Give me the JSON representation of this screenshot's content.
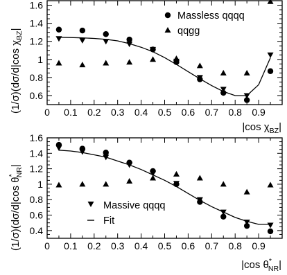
{
  "chart_data": [
    {
      "type": "scatter",
      "title": "",
      "xlabel": "|cos χ",
      "xlabel_sub": "BZ",
      "ylabel": "(1/σ)(dσ/d|cos χ",
      "ylabel_sub": "BZ",
      "xlim": [
        0,
        1
      ],
      "ylim": [
        0.5,
        1.65
      ],
      "x_ticks": [
        "0",
        "0.1",
        "0.2",
        "0.3",
        "0.4",
        "0.5",
        "0.6",
        "0.7",
        "0.8",
        "0.9"
      ],
      "y_ticks": [
        "0.6",
        "0.8",
        "1",
        "1.2",
        "1.4",
        "1.6"
      ],
      "x_tick_values": [
        0,
        0.1,
        0.2,
        0.3,
        0.4,
        0.5,
        0.6,
        0.7,
        0.8,
        0.9
      ],
      "y_tick_values": [
        0.6,
        0.8,
        1.0,
        1.2,
        1.4,
        1.6
      ],
      "grid": false,
      "legend": "top-right",
      "series": [
        {
          "name": "Massless qqqq",
          "marker": "circle",
          "x": [
            0.05,
            0.15,
            0.25,
            0.35,
            0.45,
            0.55,
            0.65,
            0.75,
            0.85,
            0.95
          ],
          "y": [
            1.33,
            1.32,
            1.28,
            1.22,
            1.11,
            0.97,
            0.78,
            0.63,
            0.55,
            0.87
          ]
        },
        {
          "name": "qqgg",
          "marker": "triangle-up",
          "x": [
            0.05,
            0.15,
            0.25,
            0.35,
            0.45,
            0.55,
            0.65,
            0.75,
            0.85,
            0.95
          ],
          "y": [
            0.96,
            0.94,
            0.96,
            0.97,
            1.0,
            1.01,
            0.93,
            0.85,
            0.85,
            1.64
          ]
        },
        {
          "marker": "triangle-down",
          "x": [
            0.05,
            0.15,
            0.25,
            0.35,
            0.45,
            0.55,
            0.65,
            0.75,
            0.85,
            0.95
          ],
          "y": [
            1.23,
            1.21,
            1.2,
            1.17,
            1.11,
            0.98,
            0.8,
            0.67,
            0.6,
            1.05
          ]
        },
        {
          "marker": "line",
          "x": [
            0.05,
            0.1,
            0.15,
            0.2,
            0.25,
            0.3,
            0.35,
            0.4,
            0.45,
            0.5,
            0.55,
            0.6,
            0.65,
            0.7,
            0.75,
            0.8,
            0.85,
            0.9,
            0.95
          ],
          "y": [
            1.245,
            1.242,
            1.238,
            1.232,
            1.222,
            1.205,
            1.175,
            1.135,
            1.085,
            1.02,
            0.945,
            0.865,
            0.785,
            0.71,
            0.645,
            0.6,
            0.6,
            0.72,
            1.02
          ]
        }
      ]
    },
    {
      "type": "scatter",
      "title": "",
      "xlabel": "|cos θ",
      "xlabel_sup": "*",
      "xlabel_sub": "NR",
      "ylabel": "(1/σ)(dσ/d|cos θ",
      "ylabel_sup": "*",
      "ylabel_sub": "NR",
      "xlim": [
        0,
        1
      ],
      "ylim": [
        0.3,
        1.6
      ],
      "x_ticks": [
        "0",
        "0.1",
        "0.2",
        "0.3",
        "0.4",
        "0.5",
        "0.6",
        "0.7",
        "0.8",
        "0.9"
      ],
      "y_ticks": [
        "0.4",
        "0.6",
        "0.8",
        "1",
        "1.2",
        "1.4",
        "1.6"
      ],
      "x_tick_values": [
        0,
        0.1,
        0.2,
        0.3,
        0.4,
        0.5,
        0.6,
        0.7,
        0.8,
        0.9
      ],
      "y_tick_values": [
        0.4,
        0.6,
        0.8,
        1.0,
        1.2,
        1.4,
        1.6
      ],
      "grid": false,
      "legend": "bottom-left",
      "series": [
        {
          "marker": "circle",
          "x": [
            0.05,
            0.15,
            0.25,
            0.35,
            0.45,
            0.55,
            0.65,
            0.75,
            0.85,
            0.95
          ],
          "y": [
            1.51,
            1.46,
            1.41,
            1.28,
            1.17,
            1.0,
            0.77,
            0.58,
            0.46,
            0.39
          ]
        },
        {
          "marker": "triangle-up",
          "x": [
            0.05,
            0.15,
            0.25,
            0.35,
            0.45,
            0.55,
            0.65,
            0.75,
            0.85,
            0.95
          ],
          "y": [
            0.99,
            1.0,
            1.0,
            1.04,
            1.08,
            1.13,
            1.08,
            1.0,
            0.9,
            0.99
          ]
        },
        {
          "name": "Massive qqqq",
          "marker": "triangle-down",
          "x": [
            0.05,
            0.15,
            0.25,
            0.35,
            0.45,
            0.55,
            0.65,
            0.75,
            0.85,
            0.95
          ],
          "y": [
            1.47,
            1.42,
            1.35,
            1.25,
            1.14,
            1.01,
            0.8,
            0.64,
            0.51,
            0.47
          ]
        },
        {
          "name": "Fit",
          "marker": "line",
          "x": [
            0.05,
            0.1,
            0.15,
            0.2,
            0.25,
            0.3,
            0.35,
            0.4,
            0.45,
            0.5,
            0.55,
            0.6,
            0.65,
            0.7,
            0.75,
            0.8,
            0.85,
            0.9,
            0.95
          ],
          "y": [
            1.44,
            1.43,
            1.41,
            1.38,
            1.35,
            1.3,
            1.25,
            1.19,
            1.12,
            1.05,
            0.97,
            0.88,
            0.79,
            0.71,
            0.64,
            0.57,
            0.52,
            0.48,
            0.48
          ]
        }
      ]
    }
  ]
}
